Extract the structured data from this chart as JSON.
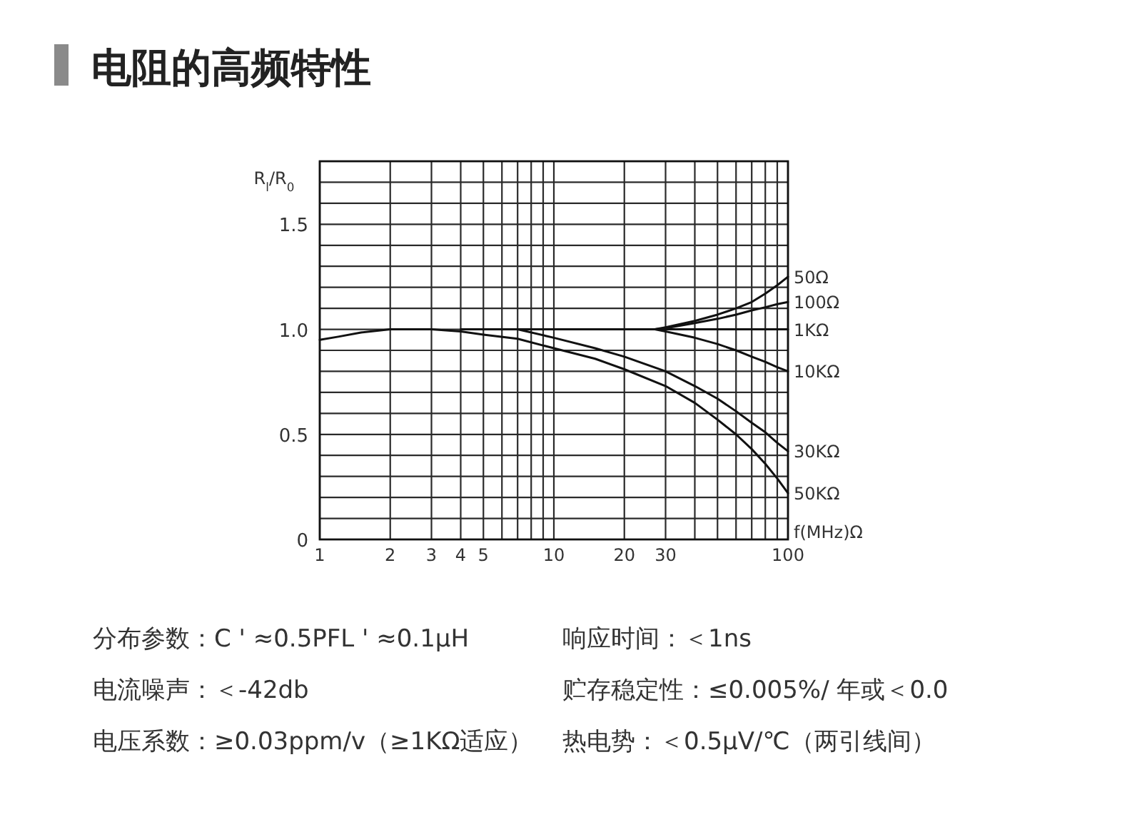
{
  "chart_data": {
    "type": "line",
    "title": "电阻的高频特性",
    "xlabel": "f(MHz)Ω",
    "ylabel": "R$_{l}$/R$_{0}$",
    "log": "x",
    "grid": true,
    "xlim": [
      1,
      100
    ],
    "xticks": [
      1,
      2,
      3,
      4,
      5,
      {
        "value": 6,
        "label": null
      },
      {
        "value": 7,
        "label": null
      },
      {
        "value": 8,
        "label": null
      },
      {
        "value": 9,
        "label": null
      },
      10,
      20,
      30,
      {
        "value": 40,
        "label": null
      },
      {
        "value": 50,
        "label": null
      },
      {
        "value": 60,
        "label": null
      },
      {
        "value": 70,
        "label": null
      },
      {
        "value": 80,
        "label": null
      },
      {
        "value": 90,
        "label": null
      },
      100
    ],
    "ylim": [
      0,
      1.8
    ],
    "yticks": [
      0,
      {
        "value": 0.1,
        "label": null
      },
      {
        "value": 0.2,
        "label": null
      },
      {
        "value": 0.3,
        "label": null
      },
      {
        "value": 0.4,
        "label": null
      },
      0.5,
      {
        "value": 0.6,
        "label": null
      },
      {
        "value": 0.7,
        "label": null
      },
      {
        "value": 0.8,
        "label": null
      },
      {
        "value": 0.9,
        "label": null
      },
      {
        "value": 1,
        "label": "1.0"
      },
      {
        "value": 1.1,
        "label": null
      },
      {
        "value": 1.2,
        "label": null
      },
      {
        "value": 1.3,
        "label": null
      },
      {
        "value": 1.4,
        "label": null
      },
      1.5,
      {
        "value": 1.6,
        "label": null
      },
      {
        "value": 1.7,
        "label": null
      },
      {
        "value": 1.8,
        "label": null
      }
    ],
    "series": [
      {
        "name": "50Ω",
        "color": "#111111",
        "x": [
          27,
          30,
          40,
          50,
          60,
          70,
          80,
          90,
          100
        ],
        "values": [
          1.0,
          1.01,
          1.04,
          1.07,
          1.1,
          1.13,
          1.17,
          1.21,
          1.25
        ]
      },
      {
        "name": "100Ω",
        "color": "#111111",
        "x": [
          27,
          30,
          40,
          50,
          60,
          70,
          80,
          90,
          100
        ],
        "values": [
          1.0,
          1.005,
          1.03,
          1.05,
          1.07,
          1.09,
          1.105,
          1.12,
          1.13
        ]
      },
      {
        "name": "1KΩ",
        "color": "#111111",
        "x": [
          4,
          100
        ],
        "values": [
          1.0,
          1.0
        ]
      },
      {
        "name": "10KΩ",
        "color": "#111111",
        "x": [
          27,
          30,
          40,
          50,
          60,
          70,
          80,
          90,
          100
        ],
        "values": [
          1.0,
          0.99,
          0.96,
          0.93,
          0.9,
          0.87,
          0.845,
          0.82,
          0.8
        ]
      },
      {
        "name": "30KΩ",
        "color": "#111111",
        "x": [
          7,
          10,
          15,
          20,
          30,
          40,
          50,
          60,
          70,
          80,
          90,
          100
        ],
        "values": [
          1.0,
          0.96,
          0.91,
          0.87,
          0.8,
          0.73,
          0.67,
          0.61,
          0.555,
          0.51,
          0.46,
          0.42
        ]
      },
      {
        "name": "50KΩ",
        "color": "#111111",
        "x": [
          1,
          1.2,
          1.5,
          2,
          3,
          4,
          5,
          7,
          10,
          15,
          20,
          30,
          40,
          50,
          60,
          70,
          80,
          90,
          100
        ],
        "values": [
          0.95,
          0.965,
          0.985,
          1.0,
          1.0,
          0.99,
          0.975,
          0.955,
          0.91,
          0.86,
          0.81,
          0.73,
          0.65,
          0.57,
          0.5,
          0.43,
          0.36,
          0.29,
          0.22
        ]
      }
    ],
    "annotations": [
      "分布参数：C ' ≈0.5PFL ' ≈0.1μH",
      "响应时间：＜1ns",
      "电流噪声：＜-42db",
      "贮存稳定性：≤0.005%/ 年或＜0.0",
      "电压系数：≥0.03ppm/v（≥1KΩ适应）",
      "热电势：＜0.5μV/℃（两引线间）"
    ]
  }
}
